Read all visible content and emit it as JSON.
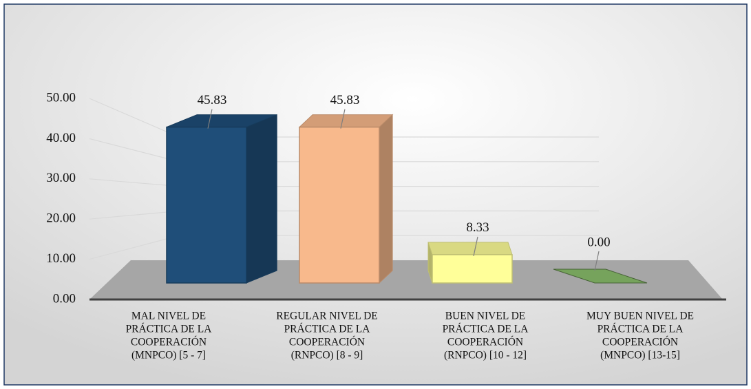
{
  "chart_data": {
    "type": "bar3d",
    "categories": [
      [
        "MAL NIVEL DE",
        "PRÁCTICA DE LA",
        "COOPERACIÓN",
        "(MNPCO) [5 - 7]"
      ],
      [
        "REGULAR NIVEL DE",
        "PRÁCTICA DE LA",
        "COOPERACIÓN",
        "(RNPCO) [8 - 9]"
      ],
      [
        "BUEN NIVEL DE",
        "PRÁCTICA DE LA",
        "COOPERACIÓN",
        "(RNPCO) [10 - 12]"
      ],
      [
        "MUY BUEN NIVEL DE",
        "PRÁCTICA DE LA",
        "COOPERACIÓN",
        "(MNPCO) [13-15]"
      ]
    ],
    "values": [
      45.83,
      45.83,
      8.33,
      0
    ],
    "value_labels": [
      "45.83",
      "45.83",
      "8.33",
      "0.00"
    ],
    "colors": [
      "#1f4e79",
      "#f8b98c",
      "#ffff99",
      "#76a35c"
    ],
    "ylim": [
      0,
      50
    ],
    "yticks": [
      {
        "value": 0,
        "label": "0.00"
      },
      {
        "value": 10,
        "label": "10.00"
      },
      {
        "value": 20,
        "label": "20.00"
      },
      {
        "value": 30,
        "label": "30.00"
      },
      {
        "value": 40,
        "label": "40.00"
      },
      {
        "value": 50,
        "label": "50.00"
      }
    ],
    "grid": true
  }
}
